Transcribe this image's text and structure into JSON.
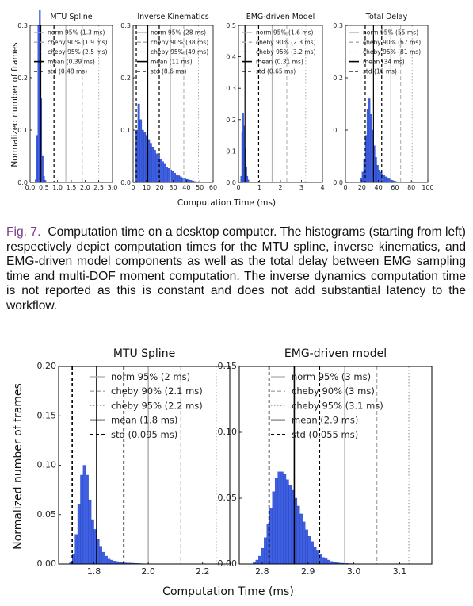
{
  "caption": {
    "label": "Fig. 7.",
    "text": "Computation time on a desktop computer. The histograms (starting from left) respectively depict computation times for the MTU spline, inverse kinematics, and EMG-driven model components as well as the total delay between EMG sampling time and multi-DOF moment computation. The inverse dynamics computation time is not reported as this is constant and does not add substantial latency to the workflow."
  },
  "top_figure": {
    "ylabel": "Normalized number of frames",
    "xlabel": "Computation Time (ms)"
  },
  "bottom_figure": {
    "ylabel": "Normalized number of frames",
    "xlabel": "Computation Time (ms)"
  },
  "legend_styles": [
    {
      "key": "norm",
      "color": "#aaaaaa",
      "dash": ""
    },
    {
      "key": "cheby90",
      "color": "#aaaaaa",
      "dash": "5,3"
    },
    {
      "key": "cheby95",
      "color": "#aaaaaa",
      "dash": "1.5,2.5"
    },
    {
      "key": "mean",
      "color": "#000000",
      "dash": ""
    },
    {
      "key": "std",
      "color": "#000000",
      "dash": "4,3"
    }
  ],
  "chart_data": [
    {
      "type": "bar",
      "title": "MTU Spline",
      "xlim": [
        0,
        3.0
      ],
      "ylim": [
        0,
        0.3
      ],
      "xticks": [
        "0.0",
        "0.5",
        "1.0",
        "1.5",
        "2.0",
        "2.5",
        "3.0"
      ],
      "xtick_values": [
        0,
        0.5,
        1.0,
        1.5,
        2.0,
        2.5,
        3.0
      ],
      "yticks": [
        "0.0",
        "0.1",
        "0.2",
        "0.3"
      ],
      "ytick_values": [
        0,
        0.1,
        0.2,
        0.3
      ],
      "bins": {
        "start": 0.18,
        "width": 0.05,
        "heights": [
          0.005,
          0.09,
          0.3,
          0.33,
          0.16,
          0.05,
          0.012,
          0.004
        ]
      },
      "lines": {
        "norm": [
          1.3
        ],
        "cheby90": [
          1.9
        ],
        "cheby95": [
          2.5
        ],
        "mean": [
          0.39
        ],
        "std": [
          0.87
        ]
      },
      "legend": [
        "norm 95% (1.3 ms)",
        "cheby 90% (1.9 ms)",
        "cheby 95% (2.5 ms)",
        "mean (0.39 ms)",
        "std (0.48 ms)"
      ]
    },
    {
      "type": "bar",
      "title": "Inverse Kinematics",
      "xlim": [
        0,
        60
      ],
      "ylim": [
        0,
        0.3
      ],
      "xticks": [
        "0",
        "10",
        "20",
        "30",
        "40",
        "50",
        "60"
      ],
      "xtick_values": [
        0,
        10,
        20,
        30,
        40,
        50,
        60
      ],
      "yticks": [
        "0.0",
        "0.1",
        "0.2",
        "0.3"
      ],
      "ytick_values": [
        0,
        0.1,
        0.2,
        0.3
      ],
      "bins": {
        "start": 2,
        "width": 1.5,
        "heights": [
          0.1,
          0.15,
          0.12,
          0.1,
          0.095,
          0.09,
          0.082,
          0.075,
          0.068,
          0.062,
          0.055,
          0.05,
          0.045,
          0.04,
          0.035,
          0.03,
          0.027,
          0.024,
          0.021,
          0.018,
          0.015,
          0.013,
          0.011,
          0.009,
          0.008,
          0.006,
          0.005,
          0.004,
          0.003,
          0.002
        ]
      },
      "lines": {
        "norm": [
          28
        ],
        "cheby90": [
          38
        ],
        "cheby95": [
          49
        ],
        "mean": [
          11
        ],
        "std": [
          2.4,
          19.6
        ]
      },
      "legend": [
        "norm 95% (28 ms)",
        "cheby 90% (38 ms)",
        "cheby 95% (49 ms)",
        "mean (11 ms)",
        "std (8.6 ms)"
      ]
    },
    {
      "type": "bar",
      "title": "EMG-driven Model",
      "xlim": [
        0,
        4
      ],
      "ylim": [
        0,
        0.5
      ],
      "xticks": [
        "0",
        "1",
        "2",
        "3",
        "4"
      ],
      "xtick_values": [
        0,
        1,
        2,
        3,
        4
      ],
      "yticks": [
        "0.0",
        "0.1",
        "0.2",
        "0.3",
        "0.4",
        "0.5"
      ],
      "ytick_values": [
        0,
        0.1,
        0.2,
        0.3,
        0.4,
        0.5
      ],
      "bins": {
        "start": 0.1,
        "width": 0.05,
        "heights": [
          0.02,
          0.16,
          0.22,
          0.18,
          0.11,
          0.05,
          0.02,
          0.008
        ]
      },
      "lines": {
        "norm": [
          1.6
        ],
        "cheby90": [
          2.3
        ],
        "cheby95": [
          3.2
        ],
        "mean": [
          0.31
        ],
        "std": [
          0.96
        ]
      },
      "legend": [
        "norm 95% (1.6 ms)",
        "cheby 90% (2.3 ms)",
        "cheby 95% (3.2 ms)",
        "mean (0.31 ms)",
        "std (0.65 ms)"
      ]
    },
    {
      "type": "bar",
      "title": "Total Delay",
      "xlim": [
        0,
        100
      ],
      "ylim": [
        0,
        0.3
      ],
      "xticks": [
        "0",
        "20",
        "40",
        "60",
        "80",
        "100"
      ],
      "xtick_values": [
        0,
        20,
        40,
        60,
        80,
        100
      ],
      "yticks": [
        "0.0",
        "0.1",
        "0.2",
        "0.3"
      ],
      "ytick_values": [
        0,
        0.1,
        0.2,
        0.3
      ],
      "bins": {
        "start": 18,
        "width": 2,
        "heights": [
          0.008,
          0.02,
          0.045,
          0.09,
          0.14,
          0.16,
          0.13,
          0.1,
          0.07,
          0.048,
          0.033,
          0.024,
          0.02,
          0.017,
          0.014,
          0.011,
          0.009,
          0.007,
          0.005,
          0.004,
          0.003,
          0.002
        ]
      },
      "lines": {
        "norm": [
          55
        ],
        "cheby90": [
          67
        ],
        "cheby95": [
          81
        ],
        "mean": [
          34
        ],
        "std": [
          24,
          44
        ]
      },
      "legend": [
        "norm 95% (55 ms)",
        "cheby 90% (67 ms)",
        "cheby 95% (81 ms)",
        "mean (34 ms)",
        "std (10 ms)"
      ]
    },
    {
      "type": "bar",
      "title": "MTU Spline",
      "xlim": [
        1.67,
        2.3
      ],
      "ylim": [
        0,
        0.2
      ],
      "xticks": [
        "1.8",
        "2.0",
        "2.2"
      ],
      "xtick_values": [
        1.8,
        2.0,
        2.2
      ],
      "yticks": [
        "0.00",
        "0.05",
        "0.10",
        "0.15",
        "0.20"
      ],
      "ytick_values": [
        0,
        0.05,
        0.1,
        0.15,
        0.2
      ],
      "bins": {
        "start": 1.71,
        "width": 0.01,
        "heights": [
          0.002,
          0.01,
          0.03,
          0.06,
          0.09,
          0.1,
          0.09,
          0.065,
          0.045,
          0.035,
          0.025,
          0.018,
          0.012,
          0.008,
          0.005,
          0.004,
          0.003,
          0.0025,
          0.002,
          0.0015,
          0.0012,
          0.001,
          0.001,
          0.0008,
          0.0006,
          0.0005,
          0.0004,
          0.0003,
          0.0003,
          0.0002
        ]
      },
      "lines": {
        "norm": [
          2.0
        ],
        "cheby90": [
          2.12
        ],
        "cheby95": [
          2.25
        ],
        "mean": [
          1.81
        ],
        "std": [
          1.72,
          1.91
        ]
      },
      "legend": [
        "norm 95% (2 ms)",
        "cheby 90% (2.1 ms)",
        "cheby 95% (2.2 ms)",
        "mean (1.8 ms)",
        "std (0.095 ms)"
      ]
    },
    {
      "type": "bar",
      "title": "EMG-driven model",
      "xlim": [
        2.75,
        3.17
      ],
      "ylim": [
        0,
        0.15
      ],
      "xticks": [
        "2.8",
        "2.9",
        "3.0",
        "3.1"
      ],
      "xtick_values": [
        2.8,
        2.9,
        3.0,
        3.1
      ],
      "yticks": [
        "0.00",
        "0.05",
        "0.10",
        "0.15"
      ],
      "ytick_values": [
        0,
        0.05,
        0.1,
        0.15
      ],
      "bins": {
        "start": 2.78,
        "width": 0.006,
        "heights": [
          0.001,
          0.003,
          0.006,
          0.012,
          0.02,
          0.03,
          0.042,
          0.055,
          0.065,
          0.07,
          0.07,
          0.068,
          0.064,
          0.06,
          0.056,
          0.05,
          0.044,
          0.038,
          0.032,
          0.026,
          0.021,
          0.017,
          0.013,
          0.01,
          0.007,
          0.005,
          0.004,
          0.003,
          0.002,
          0.0015,
          0.001,
          0.0008,
          0.0006,
          0.0005,
          0.0004,
          0.0003
        ]
      },
      "lines": {
        "norm": [
          2.98
        ],
        "cheby90": [
          3.05
        ],
        "cheby95": [
          3.12
        ],
        "mean": [
          2.87
        ],
        "std": [
          2.815,
          2.925
        ]
      },
      "legend": [
        "norm 95% (3 ms)",
        "cheby 90% (3 ms)",
        "cheby 95% (3.1 ms)",
        "mean (2.9 ms)",
        "std (0.055 ms)"
      ]
    }
  ]
}
